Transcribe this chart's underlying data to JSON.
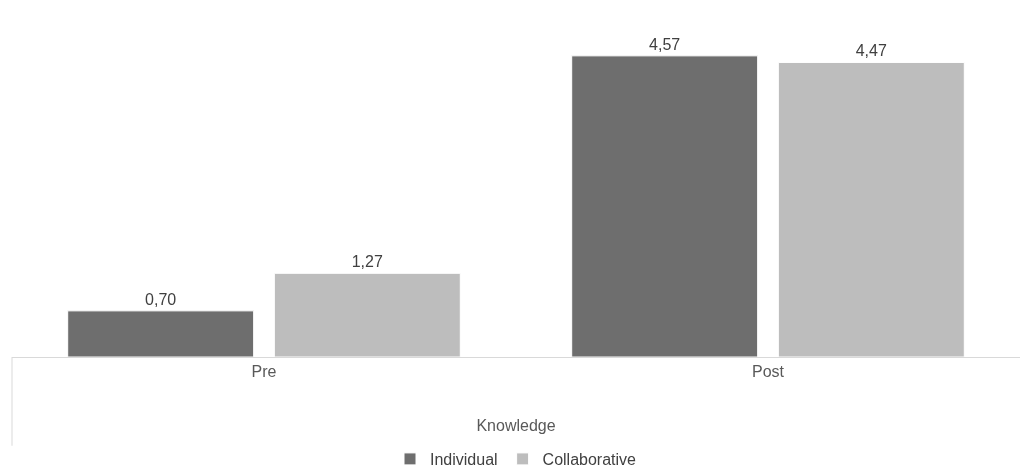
{
  "chart_data": {
    "type": "bar",
    "categories": [
      "Pre",
      "Post"
    ],
    "xlabel": "Knowledge",
    "series": [
      {
        "name": "Individual",
        "color": "#6e6e6e",
        "values": [
          0.7,
          4.57
        ],
        "value_labels": [
          "0,70",
          "4,57"
        ]
      },
      {
        "name": "Collaborative",
        "color": "#bdbdbd",
        "values": [
          1.27,
          4.47
        ],
        "value_labels": [
          "1,27",
          "4,47"
        ]
      }
    ],
    "legend": "bottom",
    "grid": false,
    "tick_labels": "x"
  }
}
